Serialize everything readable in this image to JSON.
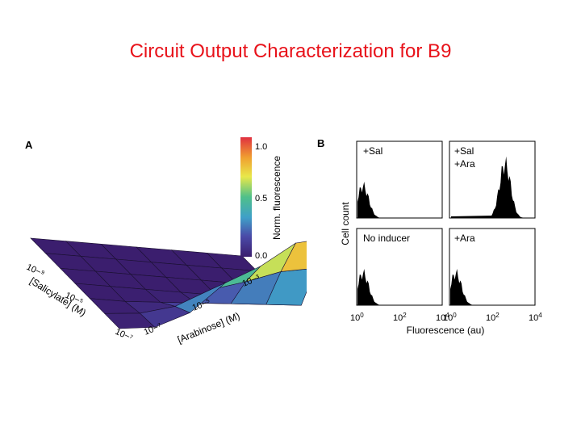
{
  "slide": {
    "title": "Circuit Output Characterization for B9"
  },
  "panels": {
    "a_label": "A",
    "b_label": "B"
  },
  "chart_data": [
    {
      "type": "heatmap",
      "rendering": "3d-surface",
      "colormap": [
        "#3b1e6e",
        "#4a4aa8",
        "#3fa0c8",
        "#4fc08a",
        "#e8e84a",
        "#f0a030",
        "#e03040"
      ],
      "x_axis": {
        "label": "[Salicylate] (M)",
        "tick_labels": [
          "10−⁹",
          "10−⁵",
          "10−⁷"
        ]
      },
      "y_axis": {
        "label": "[Arabinose] (M)",
        "tick_labels": [
          "10−⁷",
          "10−⁵",
          "10−³"
        ]
      },
      "colorbar": {
        "label": "Norm. fluorescence",
        "ticks": [
          "0.0",
          "0.5",
          "1.0"
        ],
        "range": [
          0,
          1
        ]
      },
      "z": [
        [
          0.0,
          0.0,
          0.0,
          0.0,
          0.0,
          0.0,
          0.0
        ],
        [
          0.0,
          0.0,
          0.0,
          0.0,
          0.0,
          0.0,
          0.0
        ],
        [
          0.0,
          0.0,
          0.0,
          0.0,
          0.0,
          0.0,
          0.0
        ],
        [
          0.0,
          0.0,
          0.0,
          0.0,
          0.0,
          0.0,
          0.0
        ],
        [
          0.0,
          0.0,
          0.02,
          0.04,
          0.06,
          0.08,
          0.1
        ],
        [
          0.0,
          0.03,
          0.12,
          0.3,
          0.4,
          0.52,
          0.58
        ],
        [
          0.0,
          0.04,
          0.2,
          0.5,
          0.68,
          0.92,
          1.0
        ]
      ]
    },
    {
      "type": "histogram",
      "ylabel": "Cell count",
      "xlabel": "Fluorescence (au)",
      "x_tick_labels": [
        {
          "base": "10",
          "exp": "0"
        },
        {
          "base": "10",
          "exp": "2"
        },
        {
          "base": "10",
          "exp": "4"
        }
      ],
      "scale": "log",
      "xlim": [
        0,
        4
      ],
      "grid": false,
      "panels": [
        {
          "label": "+Sal",
          "peak_log10": 0.3
        },
        {
          "label": "+Sal +Ara",
          "peak_log10": 2.6
        },
        {
          "label": "No inducer",
          "peak_log10": 0.3
        },
        {
          "label": "+Ara",
          "peak_log10": 0.3
        }
      ]
    }
  ]
}
